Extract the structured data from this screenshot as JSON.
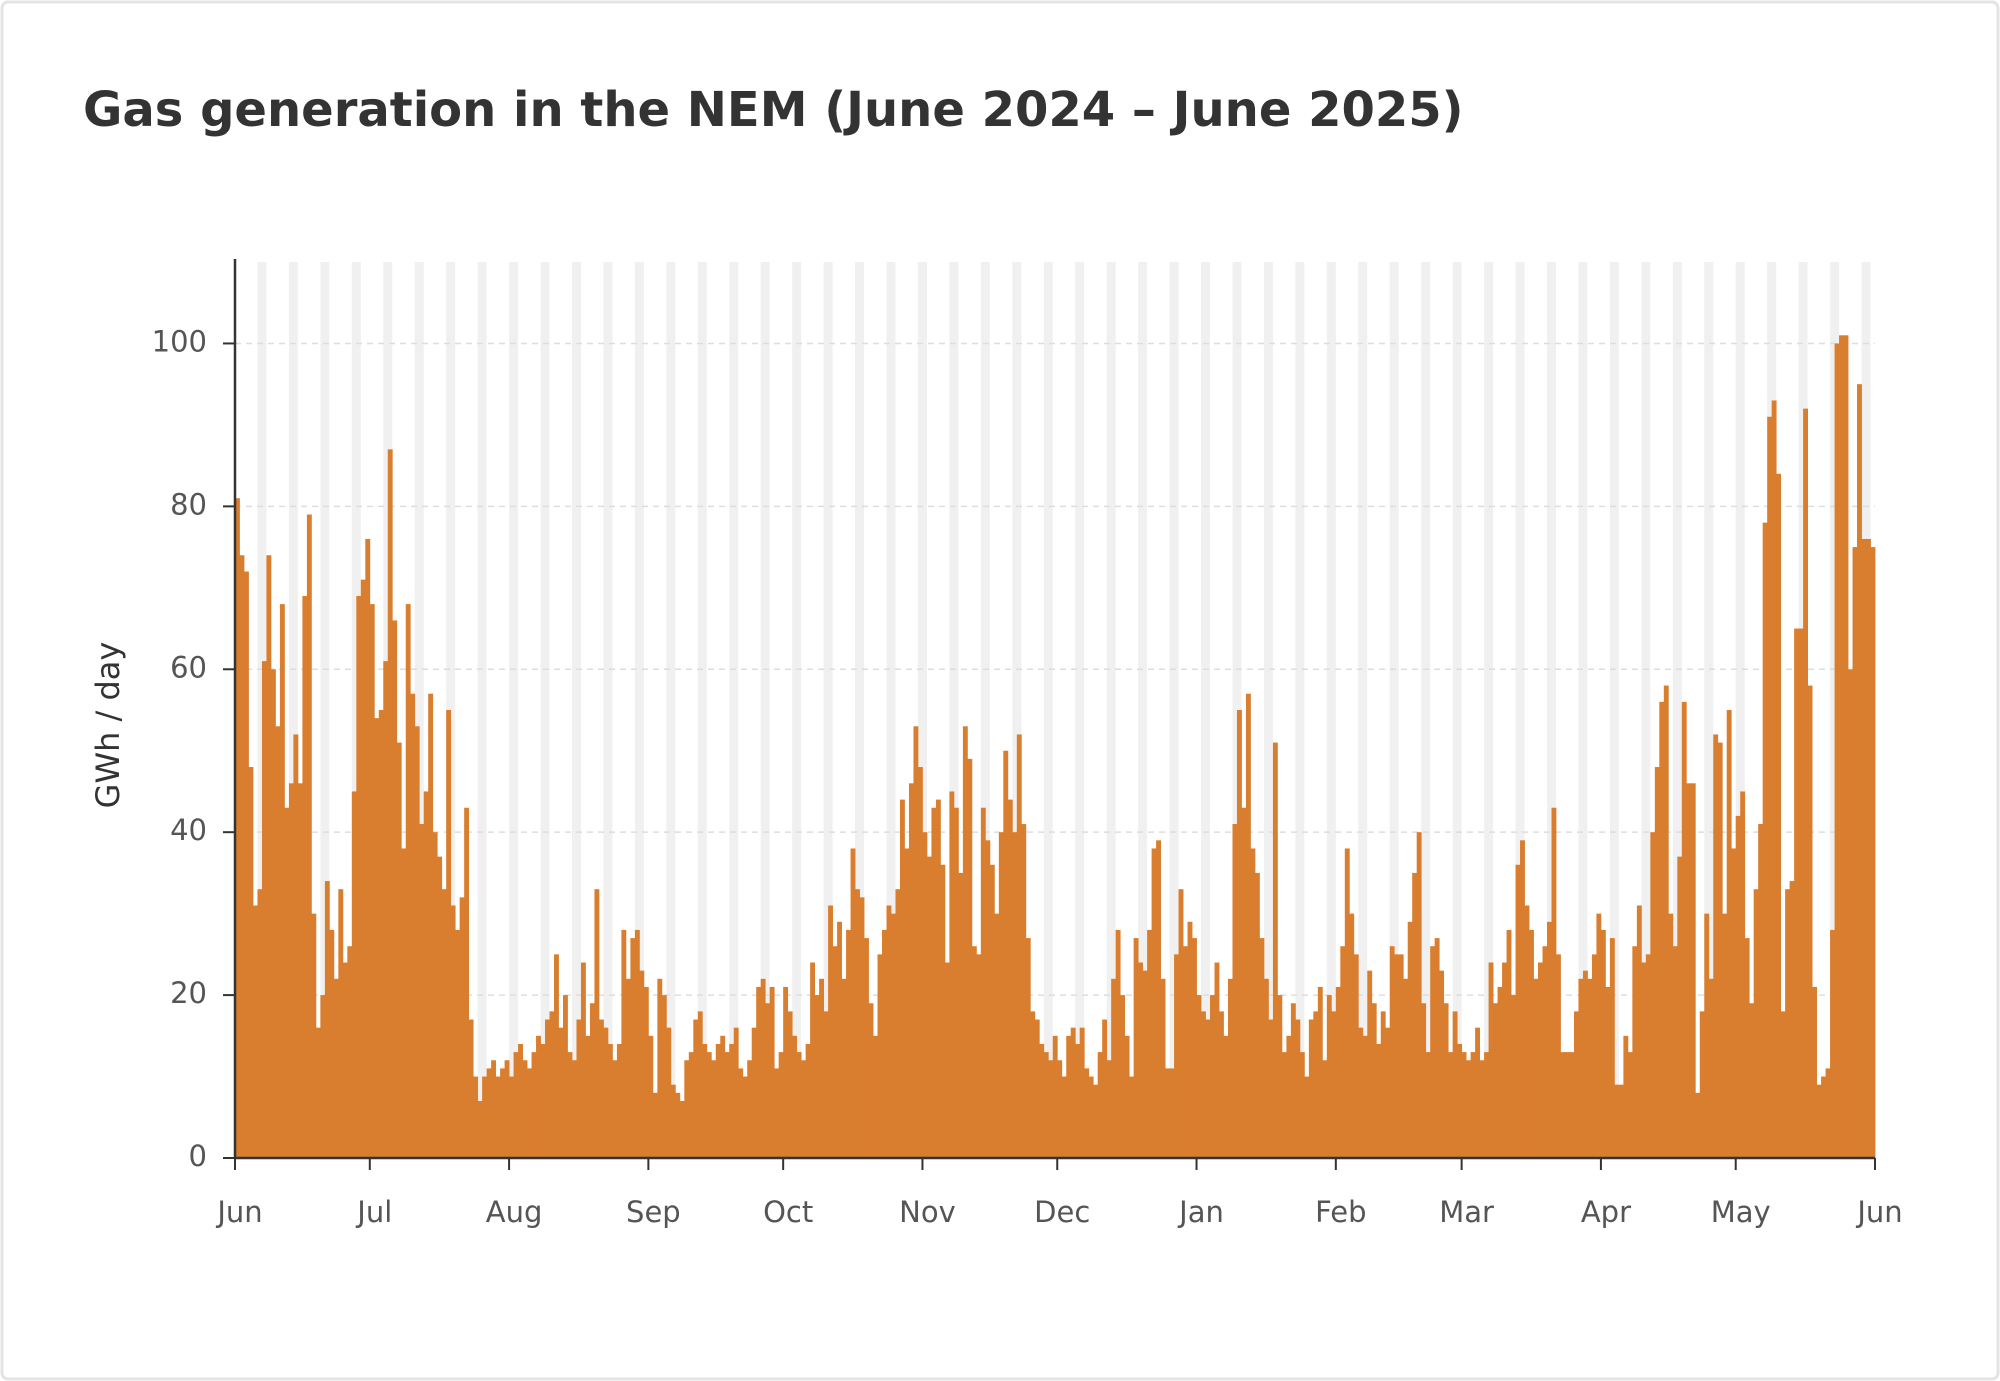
{
  "chart_data": {
    "type": "bar",
    "title": "Gas generation in the NEM (June 2024 – June 2025)",
    "y_label": "GWh / day",
    "color": "#d97e2e",
    "grid": true,
    "xlim": [
      0,
      365
    ],
    "xticks": [
      {
        "value": 0,
        "label": "Jun"
      },
      {
        "value": 30,
        "label": "Jul"
      },
      {
        "value": 61,
        "label": "Aug"
      },
      {
        "value": 92,
        "label": "Sep"
      },
      {
        "value": 122,
        "label": "Oct"
      },
      {
        "value": 153,
        "label": "Nov"
      },
      {
        "value": 183,
        "label": "Dec"
      },
      {
        "value": 214,
        "label": "Jan"
      },
      {
        "value": 245,
        "label": "Feb"
      },
      {
        "value": 273,
        "label": "Mar"
      },
      {
        "value": 304,
        "label": "Apr"
      },
      {
        "value": 334,
        "label": "May"
      },
      {
        "value": 365,
        "label": "Jun"
      }
    ],
    "ylim": [
      0,
      110
    ],
    "yticks": [
      0,
      20,
      40,
      60,
      80,
      100
    ],
    "values": [
      81,
      74,
      72,
      48,
      31,
      33,
      61,
      74,
      60,
      53,
      68,
      43,
      46,
      52,
      46,
      69,
      79,
      30,
      16,
      20,
      34,
      28,
      22,
      33,
      24,
      26,
      45,
      69,
      71,
      76,
      68,
      54,
      55,
      61,
      87,
      66,
      51,
      38,
      68,
      57,
      53,
      41,
      45,
      57,
      40,
      37,
      33,
      55,
      31,
      28,
      32,
      43,
      17,
      10,
      7,
      10,
      11,
      12,
      10,
      11,
      12,
      10,
      13,
      14,
      12,
      11,
      13,
      15,
      14,
      17,
      18,
      25,
      16,
      20,
      13,
      12,
      17,
      24,
      15,
      19,
      33,
      17,
      16,
      14,
      12,
      14,
      28,
      22,
      27,
      28,
      23,
      21,
      15,
      8,
      22,
      20,
      16,
      9,
      8,
      7,
      12,
      13,
      17,
      18,
      14,
      13,
      12,
      14,
      15,
      13,
      14,
      16,
      11,
      10,
      12,
      16,
      21,
      22,
      19,
      21,
      11,
      13,
      21,
      18,
      15,
      13,
      12,
      14,
      24,
      20,
      22,
      18,
      31,
      26,
      29,
      22,
      28,
      38,
      33,
      32,
      27,
      19,
      15,
      25,
      28,
      31,
      30,
      33,
      44,
      38,
      46,
      53,
      48,
      40,
      37,
      43,
      44,
      36,
      24,
      45,
      43,
      35,
      53,
      49,
      26,
      25,
      43,
      39,
      36,
      30,
      40,
      50,
      44,
      40,
      52,
      41,
      27,
      18,
      17,
      14,
      13,
      12,
      15,
      12,
      10,
      15,
      16,
      14,
      16,
      11,
      10,
      9,
      13,
      17,
      12,
      22,
      28,
      20,
      15,
      10,
      27,
      24,
      23,
      28,
      38,
      39,
      22,
      11,
      11,
      25,
      33,
      26,
      29,
      27,
      20,
      18,
      17,
      20,
      24,
      18,
      15,
      22,
      41,
      55,
      43,
      57,
      38,
      35,
      27,
      22,
      17,
      51,
      20,
      13,
      15,
      19,
      17,
      13,
      10,
      17,
      18,
      21,
      12,
      20,
      18,
      21,
      26,
      38,
      30,
      25,
      16,
      15,
      23,
      19,
      14,
      18,
      16,
      26,
      25,
      25,
      22,
      29,
      35,
      40,
      19,
      13,
      26,
      27,
      23,
      19,
      13,
      18,
      14,
      13,
      12,
      13,
      16,
      12,
      13,
      24,
      19,
      21,
      24,
      28,
      20,
      36,
      39,
      31,
      28,
      22,
      24,
      26,
      29,
      43,
      25,
      13,
      13,
      13,
      18,
      22,
      23,
      22,
      25,
      30,
      28,
      21,
      27,
      9,
      9,
      15,
      13,
      26,
      31,
      24,
      25,
      40,
      48,
      56,
      58,
      30,
      26,
      37,
      56,
      46,
      46,
      8,
      18,
      30,
      22,
      52,
      51,
      30,
      55,
      38,
      42,
      45,
      27,
      19,
      33,
      41,
      78,
      91,
      93,
      84,
      18,
      33,
      34,
      65,
      65,
      92,
      58,
      21,
      9,
      10,
      11,
      28,
      100,
      101,
      101,
      60,
      75,
      95,
      76,
      76,
      75
    ]
  }
}
